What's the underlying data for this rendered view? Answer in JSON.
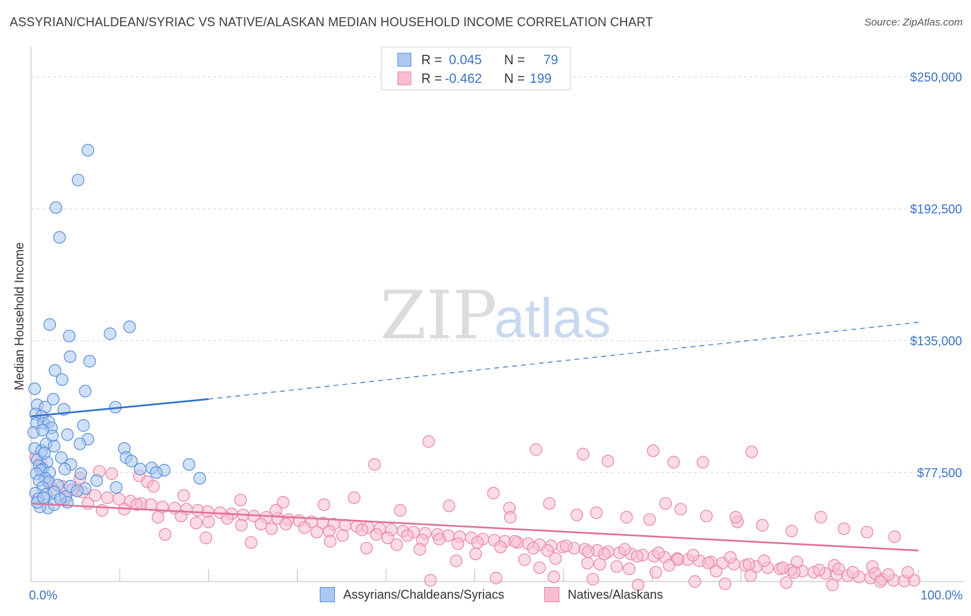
{
  "title": "ASSYRIAN/CHALDEAN/SYRIAC VS NATIVE/ALASKAN MEDIAN HOUSEHOLD INCOME CORRELATION CHART",
  "source": "Source: ZipAtlas.com",
  "watermark": {
    "zip": "ZIP",
    "atlas": "atlas"
  },
  "colors": {
    "blue_fill": "#aac8f0",
    "blue_stroke": "#5b8fd8",
    "blue_line": "#2f6fcc",
    "pink_fill": "#f7bdd0",
    "pink_stroke": "#e889a8",
    "pink_line": "#e0709a",
    "axis_label": "#3a73c4",
    "grid": "#d6d6d6"
  },
  "legend": [
    {
      "r_label": "R =",
      "r_value": "0.045",
      "n_label": "N =",
      "n_value": "79"
    },
    {
      "r_label": "R =",
      "r_value": "-0.462",
      "n_label": "N =",
      "n_value": "199"
    }
  ],
  "chart_data": {
    "type": "scatter",
    "ylabel": "Median Household Income",
    "xlim": [
      0,
      100
    ],
    "ylim": [
      30000,
      260000
    ],
    "yticks": [
      {
        "value": 77500,
        "label": "$77,500"
      },
      {
        "value": 135000,
        "label": "$135,000"
      },
      {
        "value": 192500,
        "label": "$192,500"
      },
      {
        "value": 250000,
        "label": "$250,000"
      }
    ],
    "xtick_labels": {
      "min": "0.0%",
      "max": "100.0%"
    },
    "grid": true,
    "series": [
      {
        "name": "Assyrians/Chaldeans/Syriacs",
        "trend": {
          "x0": 0,
          "y0": 102000,
          "x1": 20,
          "y1": 109500,
          "dash_x1": 100,
          "dash_y1": 143000
        },
        "points": [
          [
            6.4,
            218000
          ],
          [
            5.3,
            205000
          ],
          [
            2.8,
            193000
          ],
          [
            3.2,
            180000
          ],
          [
            2.1,
            142000
          ],
          [
            11.1,
            141000
          ],
          [
            8.9,
            138000
          ],
          [
            4.3,
            137000
          ],
          [
            4.4,
            128000
          ],
          [
            2.7,
            122000
          ],
          [
            6.6,
            126000
          ],
          [
            3.5,
            118000
          ],
          [
            6.1,
            113000
          ],
          [
            0.4,
            114000
          ],
          [
            2.5,
            109500
          ],
          [
            0.7,
            107000
          ],
          [
            1.6,
            106000
          ],
          [
            3.7,
            105000
          ],
          [
            9.5,
            106000
          ],
          [
            0.5,
            103000
          ],
          [
            1.2,
            102000
          ],
          [
            0.6,
            99000
          ],
          [
            1.4,
            99000
          ],
          [
            2.0,
            99500
          ],
          [
            2.3,
            97000
          ],
          [
            5.9,
            98000
          ],
          [
            0.3,
            95000
          ],
          [
            1.3,
            96000
          ],
          [
            4.1,
            94000
          ],
          [
            2.4,
            93500
          ],
          [
            6.4,
            92000
          ],
          [
            5.5,
            90000
          ],
          [
            0.4,
            88000
          ],
          [
            1.2,
            87000
          ],
          [
            1.7,
            90000
          ],
          [
            2.6,
            89000
          ],
          [
            0.7,
            83000
          ],
          [
            1.8,
            82000
          ],
          [
            0.9,
            80500
          ],
          [
            1.3,
            79000
          ],
          [
            1.5,
            86000
          ],
          [
            3.4,
            84000
          ],
          [
            4.5,
            81000
          ],
          [
            1.1,
            78500
          ],
          [
            0.6,
            77000
          ],
          [
            2.1,
            77500
          ],
          [
            1.6,
            75000
          ],
          [
            3.8,
            79000
          ],
          [
            5.6,
            77000
          ],
          [
            7.4,
            74000
          ],
          [
            0.9,
            74000
          ],
          [
            2.0,
            73500
          ],
          [
            3.0,
            72000
          ],
          [
            4.4,
            71500
          ],
          [
            6.1,
            70500
          ],
          [
            1.3,
            71000
          ],
          [
            1.7,
            68000
          ],
          [
            2.6,
            69000
          ],
          [
            3.9,
            67000
          ],
          [
            5.2,
            69500
          ],
          [
            0.5,
            68500
          ],
          [
            0.8,
            66000
          ],
          [
            10.5,
            88000
          ],
          [
            10.7,
            84000
          ],
          [
            11.3,
            82500
          ],
          [
            12.3,
            79000
          ],
          [
            13.6,
            79500
          ],
          [
            15.0,
            78500
          ],
          [
            17.8,
            81000
          ],
          [
            1.9,
            62000
          ],
          [
            2.6,
            63500
          ],
          [
            4.1,
            64500
          ],
          [
            1.0,
            62500
          ],
          [
            0.7,
            64500
          ],
          [
            1.4,
            66500
          ],
          [
            3.3,
            66000
          ],
          [
            14.1,
            77500
          ],
          [
            19.0,
            75000
          ],
          [
            9.6,
            71000
          ]
        ]
      },
      {
        "name": "Natives/Alaskans",
        "trend": {
          "x0": 0,
          "y0": 64000,
          "x1": 100,
          "y1": 43500
        },
        "points": [
          [
            44.8,
            91000
          ],
          [
            56.9,
            87500
          ],
          [
            62.2,
            85500
          ],
          [
            70.1,
            87000
          ],
          [
            81.2,
            86500
          ],
          [
            75.7,
            82000
          ],
          [
            65.0,
            82500
          ],
          [
            72.4,
            82000
          ],
          [
            38.7,
            81000
          ],
          [
            0.5,
            84000
          ],
          [
            1.1,
            82000
          ],
          [
            7.7,
            78000
          ],
          [
            9.1,
            77000
          ],
          [
            12.2,
            76000
          ],
          [
            13.1,
            73500
          ],
          [
            13.8,
            71500
          ],
          [
            5.5,
            75000
          ],
          [
            2.0,
            73000
          ],
          [
            3.5,
            71500
          ],
          [
            4.7,
            70000
          ],
          [
            5.8,
            69000
          ],
          [
            7.2,
            67500
          ],
          [
            8.6,
            66500
          ],
          [
            9.9,
            66000
          ],
          [
            11.2,
            65000
          ],
          [
            12.4,
            64000
          ],
          [
            13.5,
            63500
          ],
          [
            14.8,
            62500
          ],
          [
            16.2,
            62000
          ],
          [
            17.5,
            61500
          ],
          [
            18.8,
            61000
          ],
          [
            19.9,
            60500
          ],
          [
            21.3,
            60000
          ],
          [
            22.6,
            59500
          ],
          [
            23.9,
            59000
          ],
          [
            25.1,
            58500
          ],
          [
            26.5,
            58000
          ],
          [
            27.8,
            57500
          ],
          [
            29.0,
            57000
          ],
          [
            30.2,
            56500
          ],
          [
            31.6,
            56000
          ],
          [
            32.9,
            55500
          ],
          [
            34.1,
            55000
          ],
          [
            35.4,
            54500
          ],
          [
            36.7,
            54000
          ],
          [
            38.0,
            53500
          ],
          [
            39.3,
            53000
          ],
          [
            40.6,
            52500
          ],
          [
            41.9,
            52000
          ],
          [
            43.1,
            51500
          ],
          [
            44.4,
            51000
          ],
          [
            45.8,
            50500
          ],
          [
            47.0,
            50000
          ],
          [
            48.3,
            49500
          ],
          [
            49.6,
            49000
          ],
          [
            50.9,
            48500
          ],
          [
            52.2,
            48000
          ],
          [
            53.4,
            47500
          ],
          [
            54.8,
            47000
          ],
          [
            56.0,
            46500
          ],
          [
            57.3,
            46000
          ],
          [
            58.6,
            45500
          ],
          [
            59.9,
            45000
          ],
          [
            61.2,
            44500
          ],
          [
            62.4,
            44000
          ],
          [
            63.8,
            43500
          ],
          [
            65.0,
            43000
          ],
          [
            66.3,
            42500
          ],
          [
            67.6,
            42000
          ],
          [
            68.9,
            41500
          ],
          [
            70.2,
            41000
          ],
          [
            71.4,
            40500
          ],
          [
            72.8,
            40000
          ],
          [
            74.0,
            39500
          ],
          [
            75.3,
            39000
          ],
          [
            76.6,
            38500
          ],
          [
            77.9,
            38000
          ],
          [
            79.2,
            37500
          ],
          [
            80.5,
            37000
          ],
          [
            81.7,
            36500
          ],
          [
            83.0,
            36000
          ],
          [
            84.4,
            35500
          ],
          [
            85.6,
            35000
          ],
          [
            86.9,
            34500
          ],
          [
            88.2,
            34000
          ],
          [
            89.5,
            33500
          ],
          [
            90.8,
            33000
          ],
          [
            92.0,
            32500
          ],
          [
            93.3,
            32000
          ],
          [
            94.6,
            31500
          ],
          [
            95.9,
            31000
          ],
          [
            97.2,
            30500
          ],
          [
            98.4,
            30200
          ],
          [
            99.5,
            30500
          ],
          [
            2.5,
            70000
          ],
          [
            3.9,
            66000
          ],
          [
            6.4,
            64000
          ],
          [
            8.0,
            61000
          ],
          [
            10.5,
            61500
          ],
          [
            11.9,
            63500
          ],
          [
            14.3,
            58000
          ],
          [
            16.9,
            58500
          ],
          [
            18.6,
            55500
          ],
          [
            20.0,
            56000
          ],
          [
            22.1,
            57500
          ],
          [
            23.7,
            54500
          ],
          [
            25.9,
            55000
          ],
          [
            27.1,
            53000
          ],
          [
            28.7,
            55000
          ],
          [
            30.8,
            53500
          ],
          [
            32.2,
            51500
          ],
          [
            33.6,
            52000
          ],
          [
            35.1,
            50000
          ],
          [
            37.3,
            52500
          ],
          [
            38.9,
            50500
          ],
          [
            40.2,
            49000
          ],
          [
            42.4,
            50000
          ],
          [
            44.1,
            48000
          ],
          [
            46.0,
            48500
          ],
          [
            48.1,
            46500
          ],
          [
            50.3,
            47000
          ],
          [
            52.9,
            45000
          ],
          [
            54.5,
            47500
          ],
          [
            56.6,
            44500
          ],
          [
            58.2,
            43500
          ],
          [
            60.3,
            45500
          ],
          [
            62.8,
            43000
          ],
          [
            64.6,
            42000
          ],
          [
            66.9,
            44000
          ],
          [
            68.3,
            41000
          ],
          [
            70.7,
            42500
          ],
          [
            72.9,
            39500
          ],
          [
            74.6,
            41500
          ],
          [
            76.3,
            38000
          ],
          [
            78.8,
            40500
          ],
          [
            80.9,
            37500
          ],
          [
            82.6,
            39000
          ],
          [
            84.7,
            36000
          ],
          [
            86.3,
            38500
          ],
          [
            88.8,
            35000
          ],
          [
            90.5,
            37000
          ],
          [
            92.6,
            34000
          ],
          [
            94.8,
            36500
          ],
          [
            96.6,
            33000
          ],
          [
            98.8,
            34000
          ],
          [
            17.2,
            67500
          ],
          [
            23.6,
            65500
          ],
          [
            28.4,
            64500
          ],
          [
            33.0,
            63500
          ],
          [
            36.4,
            66500
          ],
          [
            41.6,
            61000
          ],
          [
            47.1,
            63000
          ],
          [
            52.1,
            68500
          ],
          [
            53.9,
            62000
          ],
          [
            58.4,
            64000
          ],
          [
            61.5,
            59000
          ],
          [
            63.7,
            60000
          ],
          [
            67.1,
            58000
          ],
          [
            69.7,
            57000
          ],
          [
            73.2,
            61500
          ],
          [
            76.1,
            58500
          ],
          [
            79.6,
            56000
          ],
          [
            82.4,
            54500
          ],
          [
            85.7,
            52000
          ],
          [
            89.0,
            58000
          ],
          [
            91.6,
            53000
          ],
          [
            94.2,
            51500
          ],
          [
            97.3,
            49500
          ],
          [
            43.8,
            44000
          ],
          [
            47.9,
            39000
          ],
          [
            50.1,
            42000
          ],
          [
            55.6,
            39500
          ],
          [
            59.1,
            40000
          ],
          [
            64.1,
            37500
          ],
          [
            67.4,
            35500
          ],
          [
            71.9,
            37000
          ],
          [
            77.2,
            34500
          ],
          [
            81.1,
            32500
          ],
          [
            86.0,
            34000
          ],
          [
            91.0,
            35500
          ],
          [
            95.1,
            33500
          ],
          [
            45.0,
            30500
          ],
          [
            52.4,
            31500
          ],
          [
            58.9,
            32000
          ],
          [
            63.3,
            31000
          ],
          [
            68.4,
            28500
          ],
          [
            74.8,
            30000
          ],
          [
            78.2,
            29000
          ],
          [
            85.1,
            29500
          ],
          [
            90.3,
            28500
          ],
          [
            95.7,
            30000
          ],
          [
            57.3,
            36000
          ],
          [
            62.7,
            38000
          ],
          [
            66.0,
            36500
          ],
          [
            70.4,
            34000
          ],
          [
            37.8,
            44500
          ],
          [
            41.2,
            46000
          ],
          [
            33.7,
            47500
          ],
          [
            24.8,
            47000
          ],
          [
            19.7,
            49000
          ],
          [
            15.1,
            50500
          ],
          [
            27.6,
            61000
          ],
          [
            54.0,
            58000
          ],
          [
            71.5,
            64000
          ],
          [
            79.4,
            58000
          ]
        ]
      }
    ]
  }
}
